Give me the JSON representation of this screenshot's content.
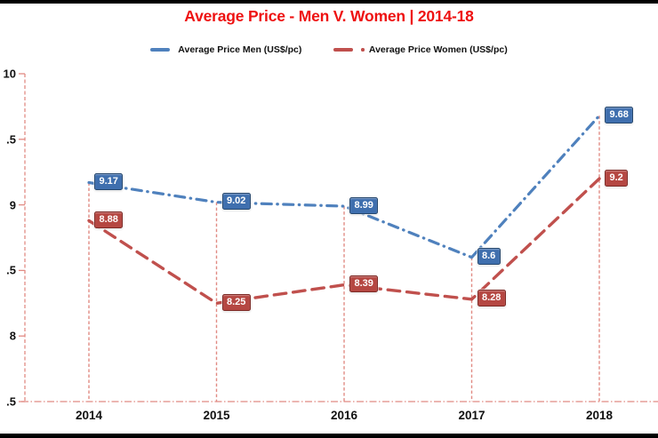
{
  "title": {
    "text": "Average Price - Men V. Women | 2014-18",
    "color": "#EE1111"
  },
  "legend": [
    {
      "label": "Average Price Men (US$/pc)",
      "color": "#4F81BD",
      "swatch_dot": false
    },
    {
      "label": "Average Price Women (US$/pc)",
      "color": "#C0504D",
      "swatch_dot": true
    }
  ],
  "chart_data": {
    "type": "line",
    "title": "Average Price - Men V. Women | 2014-18",
    "categories": [
      "2014",
      "2015",
      "2016",
      "2017",
      "2018"
    ],
    "series": [
      {
        "name": "Average Price Men (US$/pc)",
        "values": [
          9.17,
          9.02,
          8.99,
          8.6,
          9.68
        ],
        "labels": [
          "9.17",
          "9.02",
          "8.99",
          "8.6",
          "9.68"
        ],
        "color": "#4F81BD",
        "label_fill": "#3F6FAE",
        "label_border": "#27486E",
        "dash": "dash-dot"
      },
      {
        "name": "Average Price Women (US$/pc)",
        "values": [
          8.88,
          8.25,
          8.39,
          8.28,
          9.2
        ],
        "labels": [
          "8.88",
          "8.25",
          "8.39",
          "8.28",
          "9.2"
        ],
        "color": "#C0504D",
        "label_fill": "#B54742",
        "label_border": "#7D2B27",
        "dash": "dash"
      }
    ],
    "xlabel": "",
    "ylabel": "",
    "ylim": [
      7.5,
      10
    ],
    "y_tick_step": 0.5,
    "y_ticks": [
      10,
      9.5,
      9,
      8.5,
      8,
      7.5
    ],
    "y_tick_display": [
      "10",
      ".5",
      "9",
      ".5",
      "8",
      ".5"
    ],
    "grid": "off",
    "drop_lines": true,
    "legend_position": "top",
    "axis_color": "#E18B84"
  }
}
